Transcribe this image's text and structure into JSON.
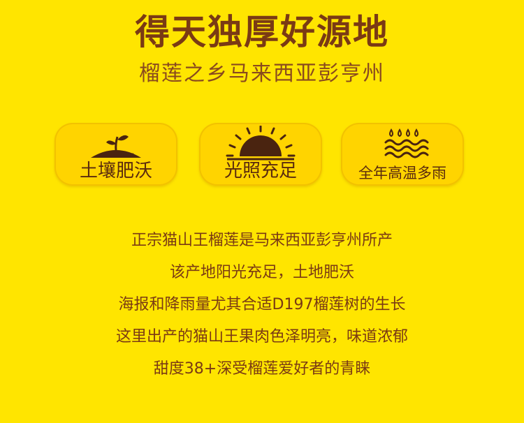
{
  "title": "得天独厚好源地",
  "subtitle": "榴莲之乡马来西亚彭亨州",
  "features": [
    {
      "label": "土壤肥沃",
      "icon": "soil-sprout-icon"
    },
    {
      "label": "光照充足",
      "icon": "sun-icon"
    },
    {
      "label": "全年高温多雨",
      "icon": "rain-water-icon"
    }
  ],
  "body_lines": [
    "正宗猫山王榴莲是马来西亚彭亨州所产",
    "该产地阳光充足，土地肥沃",
    "海报和降雨量尤其合适D197榴莲树的生长",
    "这里出产的猫山王果肉色泽明亮，味道浓郁",
    "甜度38+深受榴莲爱好者的青睐"
  ],
  "colors": {
    "background": "#FFE500",
    "card": "#FFD400",
    "text": "#7A3A14",
    "icon": "#4A2410"
  }
}
